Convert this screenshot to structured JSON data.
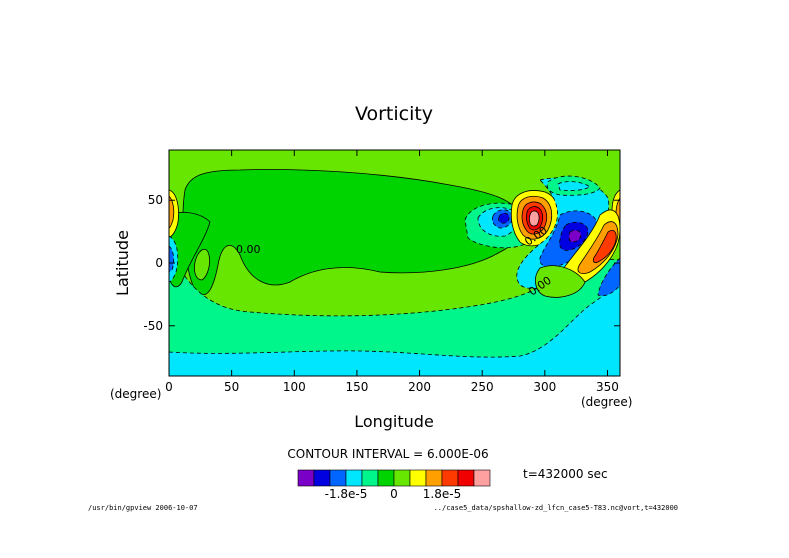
{
  "chart_data": {
    "type": "heatmap",
    "title": "Vorticity",
    "xlabel": "Longitude",
    "ylabel": "Latitude",
    "x_unit": "(degree)",
    "y_unit": "(degree)",
    "xlim": [
      0,
      360
    ],
    "ylim": [
      -90,
      90
    ],
    "x_ticks": [
      0,
      50,
      100,
      150,
      200,
      250,
      300,
      350
    ],
    "y_ticks": [
      -50,
      0,
      50
    ],
    "contour_interval_text": "CONTOUR INTERVAL = 6.000E-06",
    "time_text": "t=432000 sec",
    "contour_labels": [
      "0.00",
      "0.00",
      "0.00"
    ],
    "colorbar": {
      "colors": [
        "#7a00c8",
        "#0000e0",
        "#0066ff",
        "#00e6ff",
        "#00f58a",
        "#00d400",
        "#66e600",
        "#ffff00",
        "#ffa000",
        "#ff3a00",
        "#f00000",
        "#ffa0a0"
      ],
      "tick_labels": [
        "-1.8e-5",
        "0",
        "1.8e-5"
      ],
      "tick_values": [
        -1.8e-05,
        0,
        1.8e-05
      ],
      "interval": 6e-06
    },
    "features": [
      {
        "lon": 265,
        "lat": 35,
        "value": -1.2e-05
      },
      {
        "lon": 295,
        "lat": 32,
        "value": 3e-05
      },
      {
        "lon": 318,
        "lat": 18,
        "value": -2.4e-05
      },
      {
        "lon": 348,
        "lat": 5,
        "value": 1.8e-05
      },
      {
        "lon": 2,
        "lat": 35,
        "value": 1.2e-05
      },
      {
        "lon": 8,
        "lat": 0,
        "value": -6e-06
      },
      {
        "lon": 28,
        "lat": 2,
        "value": 6e-06
      }
    ]
  },
  "footer": {
    "left": "/usr/bin/gpview  2006-10-07",
    "right": "../case5_data/spshallow-zd_lfcn_case5-T83.nc@vort,t=432000"
  }
}
